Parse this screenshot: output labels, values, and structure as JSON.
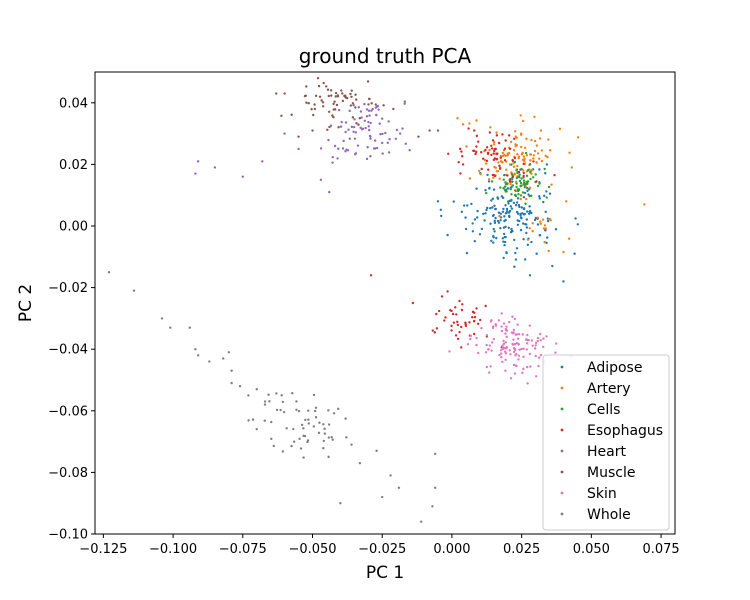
{
  "chart_data": {
    "type": "scatter",
    "title": "ground truth PCA",
    "xlabel": "PC 1",
    "ylabel": "PC 2",
    "xlim": [
      -0.128,
      0.08
    ],
    "ylim": [
      -0.1,
      0.05
    ],
    "xticks": [
      -0.125,
      -0.1,
      -0.075,
      -0.05,
      -0.025,
      0.0,
      0.025,
      0.05,
      0.075
    ],
    "xtick_labels": [
      "−0.125",
      "−0.100",
      "−0.075",
      "−0.050",
      "−0.025",
      "0.000",
      "0.025",
      "0.050",
      "0.075"
    ],
    "yticks": [
      -0.1,
      -0.08,
      -0.06,
      -0.04,
      -0.02,
      0.0,
      0.02,
      0.04
    ],
    "ytick_labels": [
      "−0.10",
      "−0.08",
      "−0.06",
      "−0.04",
      "−0.02",
      "0.00",
      "0.02",
      "0.04"
    ],
    "grid": false,
    "legend_position": "lower-right",
    "series": [
      {
        "name": "Adipose",
        "color": "#1f77b4",
        "clusters": [
          {
            "cx": 0.021,
            "cy": 0.004,
            "sx": 0.0085,
            "sy": 0.0065,
            "n": 190
          }
        ],
        "points": [
          [
            -0.005,
            0.008
          ],
          [
            0.036,
            -0.013
          ],
          [
            0.04,
            -0.018
          ],
          [
            0.044,
            -0.009
          ],
          [
            0.028,
            -0.016
          ]
        ]
      },
      {
        "name": "Artery",
        "color": "#ff7f0e",
        "clusters": [
          {
            "cx": 0.022,
            "cy": 0.022,
            "sx": 0.0075,
            "sy": 0.0055,
            "n": 125
          },
          {
            "cx": 0.03,
            "cy": -0.001,
            "sx": 0.005,
            "sy": 0.003,
            "n": 18
          }
        ],
        "points": [
          [
            0.069,
            0.007
          ],
          [
            0.043,
            0.019
          ],
          [
            0.002,
            0.035
          ],
          [
            0.004,
            0.033
          ],
          [
            0.041,
            0.008
          ]
        ]
      },
      {
        "name": "Cells",
        "color": "#2ca02c",
        "clusters": [
          {
            "cx": 0.024,
            "cy": 0.014,
            "sx": 0.0045,
            "sy": 0.003,
            "n": 80
          }
        ],
        "points": []
      },
      {
        "name": "Esophagus",
        "color": "#d62728",
        "clusters": [
          {
            "cx": 0.014,
            "cy": 0.022,
            "sx": 0.0065,
            "sy": 0.0045,
            "n": 65
          },
          {
            "cx": 0.004,
            "cy": -0.031,
            "sx": 0.005,
            "sy": 0.004,
            "n": 45
          }
        ],
        "points": [
          [
            -0.029,
            -0.016
          ],
          [
            -0.014,
            -0.025
          ],
          [
            0.008,
            0.031
          ],
          [
            0.004,
            0.02
          ]
        ]
      },
      {
        "name": "Heart",
        "color": "#9467bd",
        "clusters": [
          {
            "cx": -0.031,
            "cy": 0.031,
            "sx": 0.007,
            "sy": 0.005,
            "n": 85
          }
        ],
        "points": [
          [
            -0.092,
            0.017
          ],
          [
            -0.091,
            0.021
          ],
          [
            -0.085,
            0.019
          ],
          [
            -0.075,
            0.016
          ],
          [
            -0.068,
            0.021
          ],
          [
            -0.055,
            0.025
          ],
          [
            -0.047,
            0.015
          ],
          [
            -0.06,
            0.03
          ],
          [
            -0.023,
            0.027
          ],
          [
            -0.044,
            0.011
          ]
        ]
      },
      {
        "name": "Muscle",
        "color": "#8c564b",
        "clusters": [
          {
            "cx": -0.041,
            "cy": 0.04,
            "sx": 0.008,
            "sy": 0.003,
            "n": 65
          }
        ],
        "points": [
          [
            -0.048,
            0.048
          ],
          [
            -0.06,
            0.043
          ],
          [
            -0.063,
            0.043
          ],
          [
            -0.021,
            0.038
          ],
          [
            -0.012,
            0.029
          ],
          [
            -0.008,
            0.031
          ],
          [
            -0.005,
            0.031
          ],
          [
            -0.05,
            0.031
          ],
          [
            -0.055,
            0.029
          ]
        ]
      },
      {
        "name": "Skin",
        "color": "#e377c2",
        "clusters": [
          {
            "cx": 0.022,
            "cy": -0.039,
            "sx": 0.007,
            "sy": 0.0045,
            "n": 130
          }
        ],
        "points": []
      },
      {
        "name": "Whole",
        "color": "#7f7f7f",
        "clusters": [
          {
            "cx": -0.055,
            "cy": -0.065,
            "sx": 0.009,
            "sy": 0.0055,
            "n": 60
          }
        ],
        "points": [
          [
            -0.123,
            -0.015
          ],
          [
            -0.114,
            -0.021
          ],
          [
            -0.104,
            -0.03
          ],
          [
            -0.101,
            -0.033
          ],
          [
            -0.094,
            -0.033
          ],
          [
            -0.092,
            -0.04
          ],
          [
            -0.091,
            -0.042
          ],
          [
            -0.087,
            -0.044
          ],
          [
            -0.082,
            -0.043
          ],
          [
            -0.08,
            -0.041
          ],
          [
            -0.079,
            -0.047
          ],
          [
            -0.076,
            -0.052
          ],
          [
            -0.079,
            -0.051
          ],
          [
            -0.073,
            -0.055
          ],
          [
            -0.07,
            -0.053
          ],
          [
            -0.067,
            -0.057
          ],
          [
            -0.04,
            -0.09
          ],
          [
            -0.025,
            -0.088
          ],
          [
            -0.022,
            -0.081
          ],
          [
            -0.019,
            -0.085
          ],
          [
            -0.011,
            -0.096
          ],
          [
            -0.007,
            -0.091
          ],
          [
            -0.006,
            -0.085
          ],
          [
            -0.006,
            -0.074
          ],
          [
            -0.027,
            -0.073
          ],
          [
            -0.033,
            -0.077
          ],
          [
            -0.036,
            -0.071
          ]
        ]
      }
    ]
  }
}
